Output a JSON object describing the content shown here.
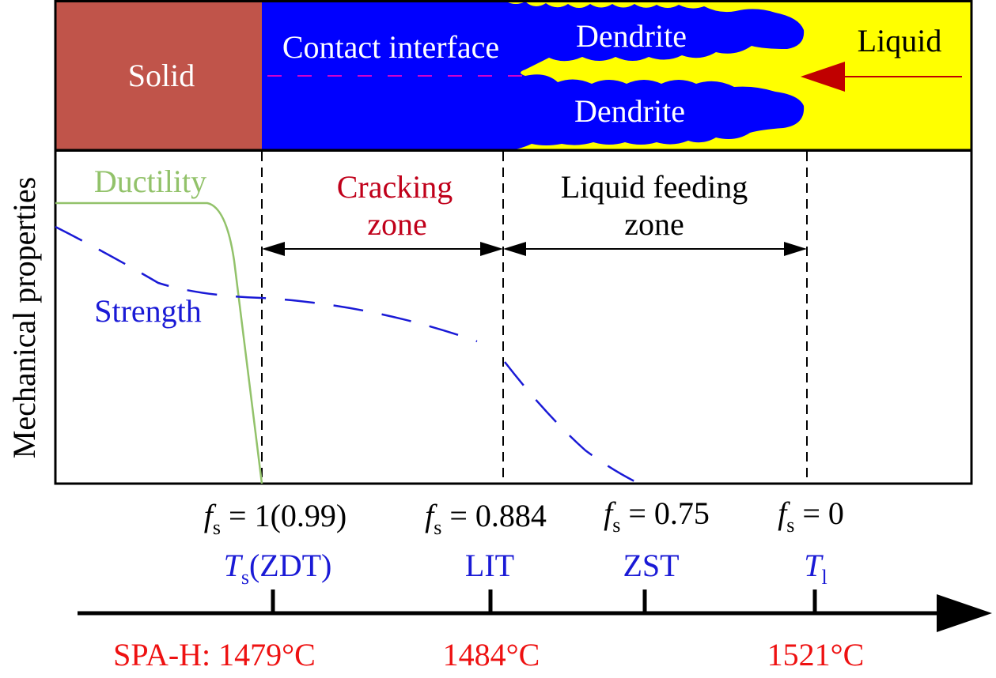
{
  "colors": {
    "solid": "#c0544a",
    "interface": "#0000ff",
    "liquid": "#ffff00",
    "ductility": "#92c26a",
    "strength": "#1a1ad6",
    "cracking": "#c0001a",
    "arrow_red": "#c00000",
    "temp_red": "#ee1111",
    "contact_line": "#d000d0",
    "black": "#000000",
    "white": "#ffffff"
  },
  "top_band": {
    "solid_label": "Solid",
    "contact_label": "Contact interface",
    "dendrite_upper": "Dendrite",
    "dendrite_lower": "Dendrite",
    "liquid_label": "Liquid"
  },
  "graph": {
    "y_axis_label": "Mechanical properties",
    "ductility_label": "Ductility",
    "strength_label": "Strength",
    "cracking_zone_line1": "Cracking",
    "cracking_zone_line2": "zone",
    "feeding_zone_line1": "Liquid feeding",
    "feeding_zone_line2": "zone"
  },
  "solid_fractions": [
    {
      "symbol": "f",
      "sub": "s",
      "rest": " = 1(0.99)"
    },
    {
      "symbol": "f",
      "sub": "s",
      "rest": " = 0.884"
    },
    {
      "symbol": "f",
      "sub": "s",
      "rest": " = 0.75"
    },
    {
      "symbol": "f",
      "sub": "s",
      "rest": " = 0"
    }
  ],
  "temperature_markers": {
    "ts_symbol": "T",
    "ts_sub": "s",
    "ts_rest": "(ZDT)",
    "lit": "LIT",
    "zst": "ZST",
    "tl_symbol": "T",
    "tl_sub": "l"
  },
  "temperatures": {
    "first": "SPA-H: 1479°C",
    "second": "1484°C",
    "third": "1521°C"
  }
}
